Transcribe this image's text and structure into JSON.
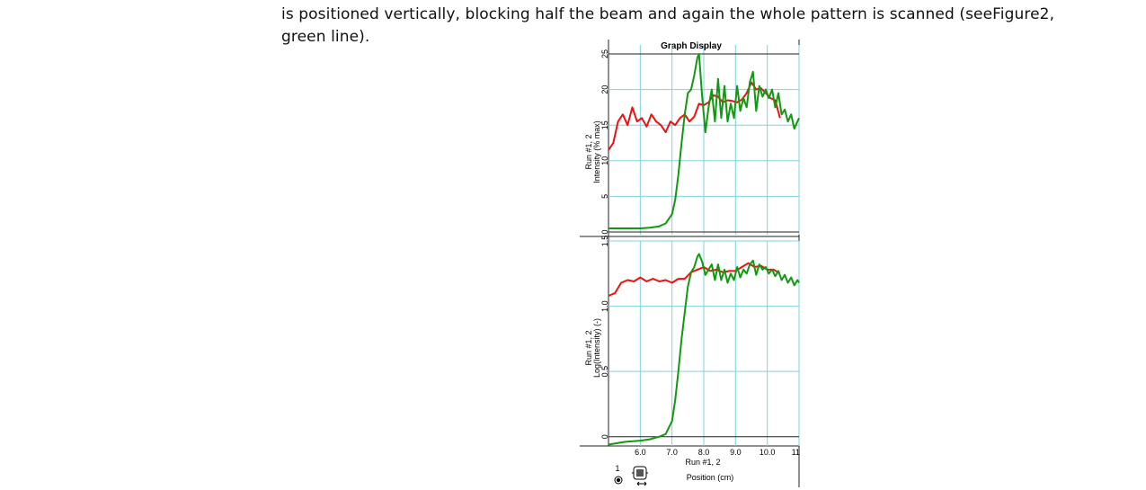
{
  "paragraph": {
    "line1": "is positioned vertically, blocking half the beam and again the whole pattern is scanned (seeFigure2,",
    "line2": "green line)."
  },
  "chart_data": [
    {
      "type": "line",
      "title": "Graph Display",
      "ylabel_run": "Run #1, 2",
      "ylabel": "Intensity (% max)",
      "xlim": [
        5.0,
        11.0
      ],
      "ylim": [
        0,
        25
      ],
      "yticks": [
        "0",
        "5",
        "10",
        "15",
        "20",
        "25"
      ],
      "grid": true,
      "series": [
        {
          "name": "Run #1",
          "color": "#ee1111",
          "x": [
            5.0,
            5.15,
            5.3,
            5.45,
            5.6,
            5.75,
            5.9,
            6.05,
            6.2,
            6.35,
            6.5,
            6.65,
            6.8,
            6.95,
            7.1,
            7.25,
            7.4,
            7.55,
            7.7,
            7.85,
            8.0,
            8.15,
            8.3,
            8.45,
            8.6,
            8.75,
            8.9,
            9.05,
            9.2,
            9.35,
            9.5,
            9.65,
            9.8,
            9.95,
            10.1,
            10.25,
            10.4
          ],
          "y": [
            11.5,
            12.5,
            15.5,
            16.5,
            15,
            17.5,
            15.5,
            16,
            14.8,
            16.5,
            15.5,
            15,
            14,
            15.5,
            15,
            16,
            16.5,
            15.5,
            16.2,
            18,
            17.8,
            18.2,
            19.2,
            19,
            18.2,
            18.5,
            18.4,
            18.2,
            18.6,
            19.5,
            21,
            20,
            20.2,
            19.5,
            18.8,
            18.5,
            16
          ]
        },
        {
          "name": "Run #2",
          "color": "#119911",
          "x": [
            5.0,
            5.5,
            6.0,
            6.3,
            6.6,
            6.8,
            7.0,
            7.1,
            7.2,
            7.3,
            7.4,
            7.5,
            7.6,
            7.7,
            7.8,
            7.85,
            7.95,
            8.05,
            8.15,
            8.25,
            8.35,
            8.45,
            8.55,
            8.65,
            8.75,
            8.85,
            8.95,
            9.05,
            9.15,
            9.25,
            9.35,
            9.45,
            9.55,
            9.65,
            9.75,
            9.85,
            9.95,
            10.05,
            10.15,
            10.25,
            10.35,
            10.45,
            10.55,
            10.65,
            10.75,
            10.85,
            10.95,
            11.0
          ],
          "y": [
            0.5,
            0.5,
            0.5,
            0.6,
            0.8,
            1.2,
            2.5,
            4.5,
            8,
            12.5,
            16.5,
            19.5,
            20,
            22,
            24.5,
            25,
            19,
            14,
            17.5,
            20,
            15.5,
            21.5,
            16,
            20.5,
            15.5,
            18,
            16,
            20.5,
            17,
            18.8,
            17.5,
            21,
            22.5,
            17,
            20.5,
            19,
            20,
            18.8,
            20,
            17.5,
            19.5,
            16.5,
            17.2,
            15.5,
            16.5,
            14.5,
            15.5,
            16
          ]
        }
      ]
    },
    {
      "type": "line",
      "ylabel_run": "Run #1, 2",
      "ylabel": "Log(Intensity) (-)",
      "xlabel_run": "Run #1, 2",
      "xlabel": "Position (cm)",
      "xlim": [
        5.0,
        11.0
      ],
      "ylim": [
        -0.05,
        1.5
      ],
      "xticks": [
        "6.0",
        "7.0",
        "8.0",
        "9.0",
        "10.0",
        "11.0"
      ],
      "yticks": [
        "0",
        "0.5",
        "1.0",
        "1.5"
      ],
      "grid": true,
      "series": [
        {
          "name": "Run #1",
          "color": "#ee1111",
          "x": [
            5.0,
            5.2,
            5.4,
            5.6,
            5.8,
            6.0,
            6.2,
            6.4,
            6.6,
            6.8,
            7.0,
            7.2,
            7.4,
            7.6,
            7.8,
            8.0,
            8.2,
            8.4,
            8.6,
            8.8,
            9.0,
            9.2,
            9.4,
            9.6,
            9.8,
            10.0,
            10.2,
            10.4
          ],
          "y": [
            1.08,
            1.1,
            1.18,
            1.2,
            1.19,
            1.22,
            1.19,
            1.21,
            1.19,
            1.2,
            1.18,
            1.21,
            1.21,
            1.26,
            1.28,
            1.3,
            1.27,
            1.28,
            1.26,
            1.27,
            1.27,
            1.3,
            1.33,
            1.3,
            1.31,
            1.28,
            1.28,
            1.25
          ]
        },
        {
          "name": "Run #2",
          "color": "#119911",
          "x": [
            5.0,
            5.5,
            6.0,
            6.3,
            6.6,
            6.8,
            7.0,
            7.1,
            7.2,
            7.3,
            7.4,
            7.5,
            7.6,
            7.7,
            7.8,
            7.85,
            7.95,
            8.05,
            8.15,
            8.25,
            8.35,
            8.45,
            8.55,
            8.65,
            8.75,
            8.85,
            8.95,
            9.05,
            9.15,
            9.25,
            9.35,
            9.45,
            9.55,
            9.65,
            9.75,
            9.85,
            9.95,
            10.05,
            10.15,
            10.25,
            10.35,
            10.45,
            10.55,
            10.65,
            10.75,
            10.85,
            10.95,
            11.0
          ],
          "y": [
            -0.06,
            -0.04,
            -0.03,
            -0.02,
            0.0,
            0.02,
            0.12,
            0.28,
            0.5,
            0.75,
            0.95,
            1.15,
            1.26,
            1.3,
            1.38,
            1.4,
            1.34,
            1.24,
            1.28,
            1.32,
            1.2,
            1.32,
            1.2,
            1.28,
            1.18,
            1.25,
            1.2,
            1.3,
            1.22,
            1.28,
            1.25,
            1.32,
            1.35,
            1.24,
            1.32,
            1.28,
            1.3,
            1.25,
            1.28,
            1.23,
            1.27,
            1.2,
            1.24,
            1.18,
            1.22,
            1.16,
            1.2,
            1.18
          ]
        }
      ]
    }
  ],
  "legend_row": {
    "label": "1",
    "icons": [
      "radio-button-icon",
      "data-run-icon",
      "scroll-arrows-icon"
    ]
  }
}
